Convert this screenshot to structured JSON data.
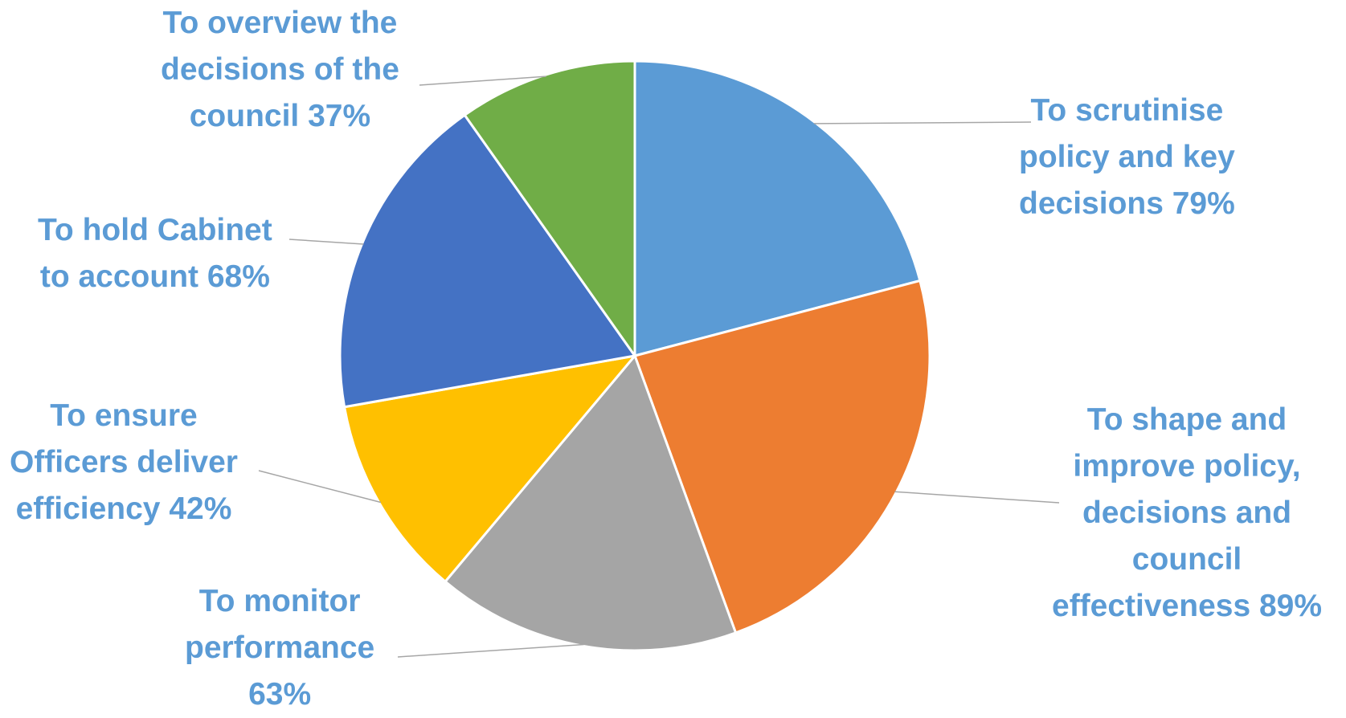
{
  "chart_data": {
    "type": "pie",
    "title": "",
    "slices": [
      {
        "label_lines": [
          "To scrutinise",
          "policy and key",
          "decisions 79%"
        ],
        "value": 79,
        "color": "#5b9bd5"
      },
      {
        "label_lines": [
          "To shape and",
          "improve policy,",
          "decisions and",
          "council",
          "effectiveness 89%"
        ],
        "value": 89,
        "color": "#ed7d31"
      },
      {
        "label_lines": [
          "To monitor",
          "performance",
          "63%"
        ],
        "value": 63,
        "color": "#a5a5a5"
      },
      {
        "label_lines": [
          "To ensure",
          "Officers deliver",
          "efficiency 42%"
        ],
        "value": 42,
        "color": "#ffc000"
      },
      {
        "label_lines": [
          "To hold Cabinet",
          "to account 68%"
        ],
        "value": 68,
        "color": "#4472c4"
      },
      {
        "label_lines": [
          "To overview the",
          "decisions of the",
          "council 37%"
        ],
        "value": 37,
        "color": "#70ad47"
      }
    ],
    "label_color": "#5b9bd5",
    "leader_color": "#a6a6a6",
    "legend": "none"
  }
}
